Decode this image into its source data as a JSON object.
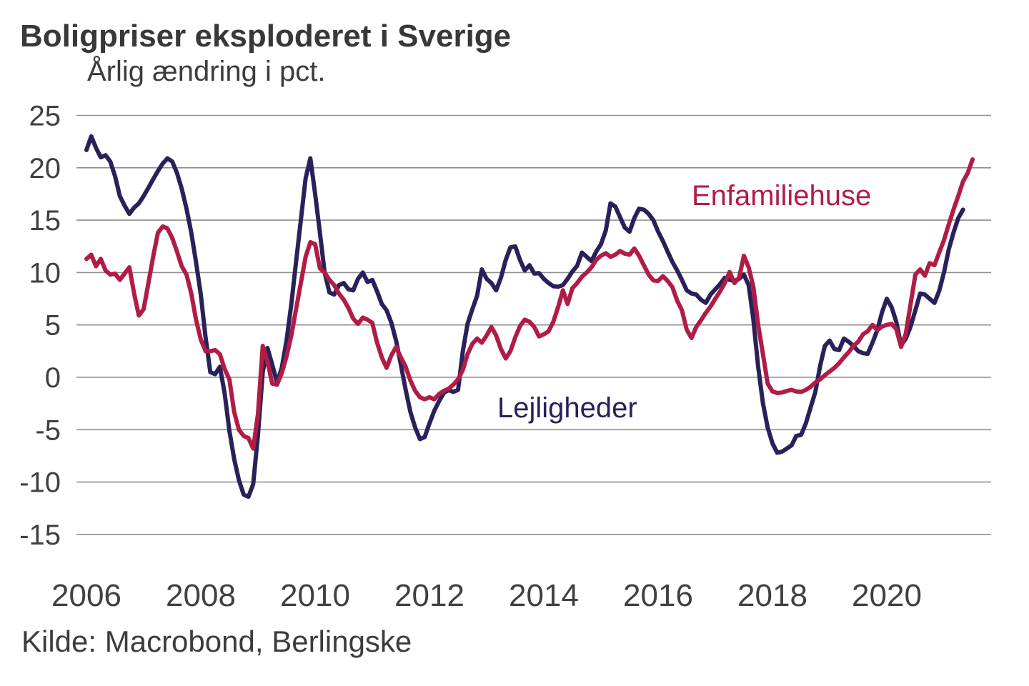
{
  "header": {
    "title": "Boligpriser eksploderet i Sverige",
    "subtitle": "Årlig ændring i pct."
  },
  "footer": {
    "source": "Kilde: Macrobond, Berlingske"
  },
  "colors": {
    "house_line": "#b11c45",
    "apartment_line": "#29215a",
    "grid": "#8f8f8f",
    "axis_text": "#404040",
    "background": "#ffffff"
  },
  "chart_data": {
    "type": "line",
    "title": "Boligpriser eksploderet i Sverige",
    "ylabel": "Årlig ændring i pct.",
    "unit": "pct.",
    "ylim": [
      -15,
      25
    ],
    "y_ticks": [
      25,
      20,
      15,
      10,
      5,
      0,
      -5,
      -10,
      -15
    ],
    "x_ticks": [
      2006,
      2008,
      2010,
      2012,
      2014,
      2016,
      2018,
      2020
    ],
    "x_start": "2006-01",
    "freq": "monthly",
    "grid": "horizontal-only",
    "legend_position": "inline-annotations",
    "series": [
      {
        "name": "Lejligheder",
        "color": "#29215a",
        "values": [
          21.7,
          23.0,
          21.9,
          21.0,
          21.2,
          20.6,
          19.2,
          17.3,
          16.4,
          15.6,
          16.2,
          16.6,
          17.3,
          18.1,
          18.9,
          19.7,
          20.4,
          20.9,
          20.6,
          19.5,
          18.0,
          16.1,
          13.8,
          11.0,
          7.9,
          3.8,
          0.5,
          0.3,
          1.0,
          -1.5,
          -5.1,
          -7.8,
          -9.8,
          -11.2,
          -11.4,
          -10.2,
          -5.5,
          0.5,
          2.8,
          1.2,
          -0.5,
          0.9,
          3.5,
          7.0,
          11.0,
          15.0,
          19.0,
          20.9,
          17.5,
          13.8,
          10.0,
          8.1,
          7.9,
          8.8,
          9.0,
          8.4,
          8.3,
          9.4,
          10.0,
          9.1,
          9.3,
          8.2,
          7.0,
          6.4,
          5.2,
          3.5,
          1.2,
          -1.2,
          -3.3,
          -4.8,
          -5.9,
          -5.7,
          -4.4,
          -3.2,
          -2.3,
          -1.5,
          -1.2,
          -1.4,
          -1.2,
          2.5,
          5.1,
          6.5,
          7.8,
          10.3,
          9.4,
          9.0,
          8.3,
          9.5,
          11.2,
          12.4,
          12.5,
          11.2,
          10.2,
          10.7,
          9.9,
          9.95,
          9.4,
          9.0,
          8.7,
          8.65,
          8.8,
          9.4,
          10.1,
          10.65,
          11.9,
          11.5,
          11.1,
          12.0,
          12.7,
          14.0,
          16.6,
          16.3,
          15.3,
          14.3,
          13.9,
          15.2,
          16.1,
          16.0,
          15.6,
          15.0,
          13.9,
          13.0,
          12.0,
          11.0,
          10.2,
          9.3,
          8.3,
          8.0,
          7.9,
          7.4,
          7.1,
          7.9,
          8.4,
          8.9,
          9.5,
          9.3,
          9.2,
          9.4,
          9.8,
          8.8,
          5.5,
          1.0,
          -2.5,
          -4.8,
          -6.3,
          -7.2,
          -7.1,
          -6.8,
          -6.5,
          -5.6,
          -5.5,
          -4.4,
          -2.9,
          -1.4,
          1.1,
          3.0,
          3.5,
          2.7,
          2.6,
          3.7,
          3.4,
          3.0,
          2.5,
          2.3,
          2.25,
          3.3,
          4.5,
          6.2,
          7.5,
          6.7,
          5.3,
          3.05,
          3.7,
          4.85,
          6.4,
          8.0,
          7.9,
          7.5,
          7.1,
          8.25,
          10.0,
          12.2,
          13.8,
          15.2,
          16.0
        ]
      },
      {
        "name": "Enfamiliehuse",
        "color": "#b11c45",
        "values": [
          11.3,
          11.7,
          10.6,
          11.3,
          10.2,
          9.8,
          9.9,
          9.3,
          9.9,
          10.5,
          8.0,
          5.9,
          6.5,
          9.0,
          11.5,
          13.8,
          14.4,
          14.2,
          13.3,
          12.0,
          10.6,
          9.8,
          8.0,
          5.5,
          3.6,
          2.5,
          2.5,
          2.6,
          2.2,
          0.8,
          -0.2,
          -3.3,
          -5.0,
          -5.6,
          -5.8,
          -6.8,
          -3.5,
          3.0,
          1.5,
          -0.6,
          -0.7,
          0.4,
          2.0,
          4.0,
          6.5,
          9.0,
          11.5,
          12.9,
          12.7,
          10.4,
          10.0,
          9.3,
          8.8,
          8.0,
          7.4,
          6.6,
          5.6,
          5.1,
          5.7,
          5.5,
          5.2,
          3.3,
          1.9,
          0.9,
          2.1,
          2.9,
          1.9,
          1.0,
          -0.3,
          -1.3,
          -1.9,
          -2.1,
          -1.9,
          -2.1,
          -1.6,
          -1.3,
          -1.1,
          -0.7,
          -0.2,
          0.7,
          2.2,
          3.2,
          3.7,
          3.3,
          4.0,
          4.8,
          4.0,
          2.7,
          1.8,
          2.5,
          3.8,
          4.9,
          5.5,
          5.3,
          4.8,
          3.9,
          4.1,
          4.4,
          5.3,
          6.7,
          8.3,
          7.0,
          8.5,
          9.0,
          9.6,
          10.0,
          10.5,
          11.2,
          11.6,
          11.85,
          11.5,
          11.7,
          12.05,
          11.8,
          11.7,
          12.3,
          11.6,
          10.7,
          9.8,
          9.25,
          9.2,
          9.65,
          9.2,
          8.6,
          7.3,
          6.4,
          4.55,
          3.75,
          4.8,
          5.45,
          6.15,
          6.75,
          7.5,
          8.2,
          9.0,
          10.05,
          9.0,
          9.5,
          11.6,
          10.5,
          8.6,
          5.0,
          2.2,
          -0.6,
          -1.35,
          -1.5,
          -1.45,
          -1.3,
          -1.2,
          -1.35,
          -1.4,
          -1.2,
          -0.9,
          -0.5,
          -0.2,
          0.2,
          0.55,
          0.9,
          1.35,
          1.9,
          2.4,
          3.0,
          3.4,
          4.1,
          4.4,
          5.0,
          4.5,
          4.85,
          5.0,
          5.1,
          4.6,
          2.9,
          4.2,
          7.0,
          9.8,
          10.3,
          9.7,
          10.9,
          10.7,
          11.9,
          13.1,
          14.6,
          16.0,
          17.3,
          18.7,
          19.5,
          20.8
        ]
      }
    ]
  }
}
